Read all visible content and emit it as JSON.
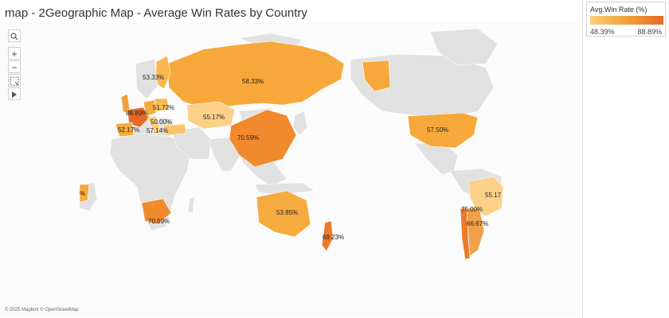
{
  "header": {
    "title": "map - 2Geographic Map - Average Win Rates by Country"
  },
  "legend": {
    "title": "Avg.Win Rate (%)",
    "min_label": "48.39%",
    "max_label": "88.89%",
    "color_low": "#fbcf7a",
    "color_high": "#e36a25"
  },
  "map_tools": {
    "search_icon": "search-icon",
    "zoom_in": "+",
    "zoom_out": "−",
    "pan_icon": "pan-icon",
    "expand_icon": "play-icon"
  },
  "countries": {
    "russia": "58.33%",
    "finland": "53.33%",
    "poland": "51.72%",
    "france": "88.89%",
    "italy": "50.00%",
    "spain": "52.17%",
    "turkey": "57.14%",
    "kazakhstan": "55.17%",
    "china": "70.59%",
    "usa": "57.50%",
    "australia": "53.85%",
    "new_zealand": "69.23%",
    "south_africa": "70.59%",
    "brazil": "55.17",
    "chile": "75.00%",
    "argentina": "66.67%",
    "partial_west": "%"
  },
  "attribution": "© 2025 Mapbox © OpenStreetMap"
}
